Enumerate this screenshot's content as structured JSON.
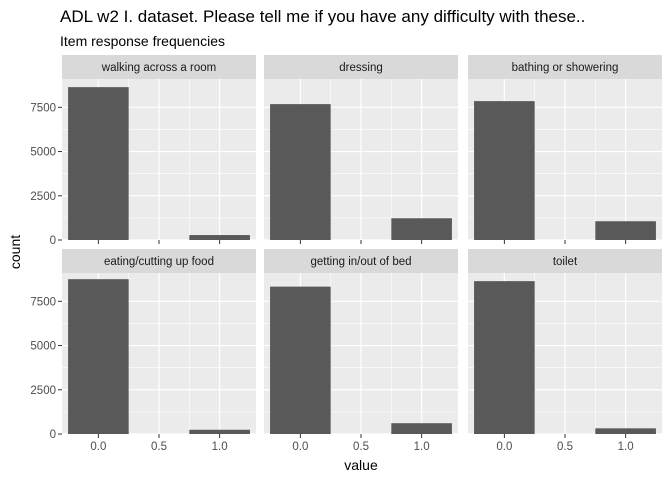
{
  "chart_data": {
    "type": "bar",
    "title": "ADL w2 I. dataset. Please tell me if you have any difficulty with these..",
    "subtitle": "Item response frequencies",
    "xlabel": "value",
    "ylabel": "count",
    "x_ticks": [
      "0.0",
      "0.5",
      "1.0"
    ],
    "y_ticks": [
      "0",
      "2500",
      "5000",
      "7500"
    ],
    "xlim": [
      -0.3,
      1.3
    ],
    "ylim": [
      0,
      9100
    ],
    "bar_width": 0.5,
    "facet_layout": "2 rows x 3 columns",
    "grid": true,
    "bar_color": "#595959",
    "panel_color": "#ebebeb",
    "strip_color": "#d9d9d9",
    "facets": [
      {
        "label": "walking across a room",
        "x": [
          0,
          1
        ],
        "values": [
          8640,
          280
        ]
      },
      {
        "label": "dressing",
        "x": [
          0,
          1
        ],
        "values": [
          7680,
          1230
        ]
      },
      {
        "label": "bathing or showering",
        "x": [
          0,
          1
        ],
        "values": [
          7850,
          1060
        ]
      },
      {
        "label": "eating/cutting up food",
        "x": [
          0,
          1
        ],
        "values": [
          8750,
          240
        ]
      },
      {
        "label": "getting in/out of bed",
        "x": [
          0,
          1
        ],
        "values": [
          8330,
          610
        ]
      },
      {
        "label": "toilet",
        "x": [
          0,
          1
        ],
        "values": [
          8640,
          320
        ]
      }
    ]
  }
}
